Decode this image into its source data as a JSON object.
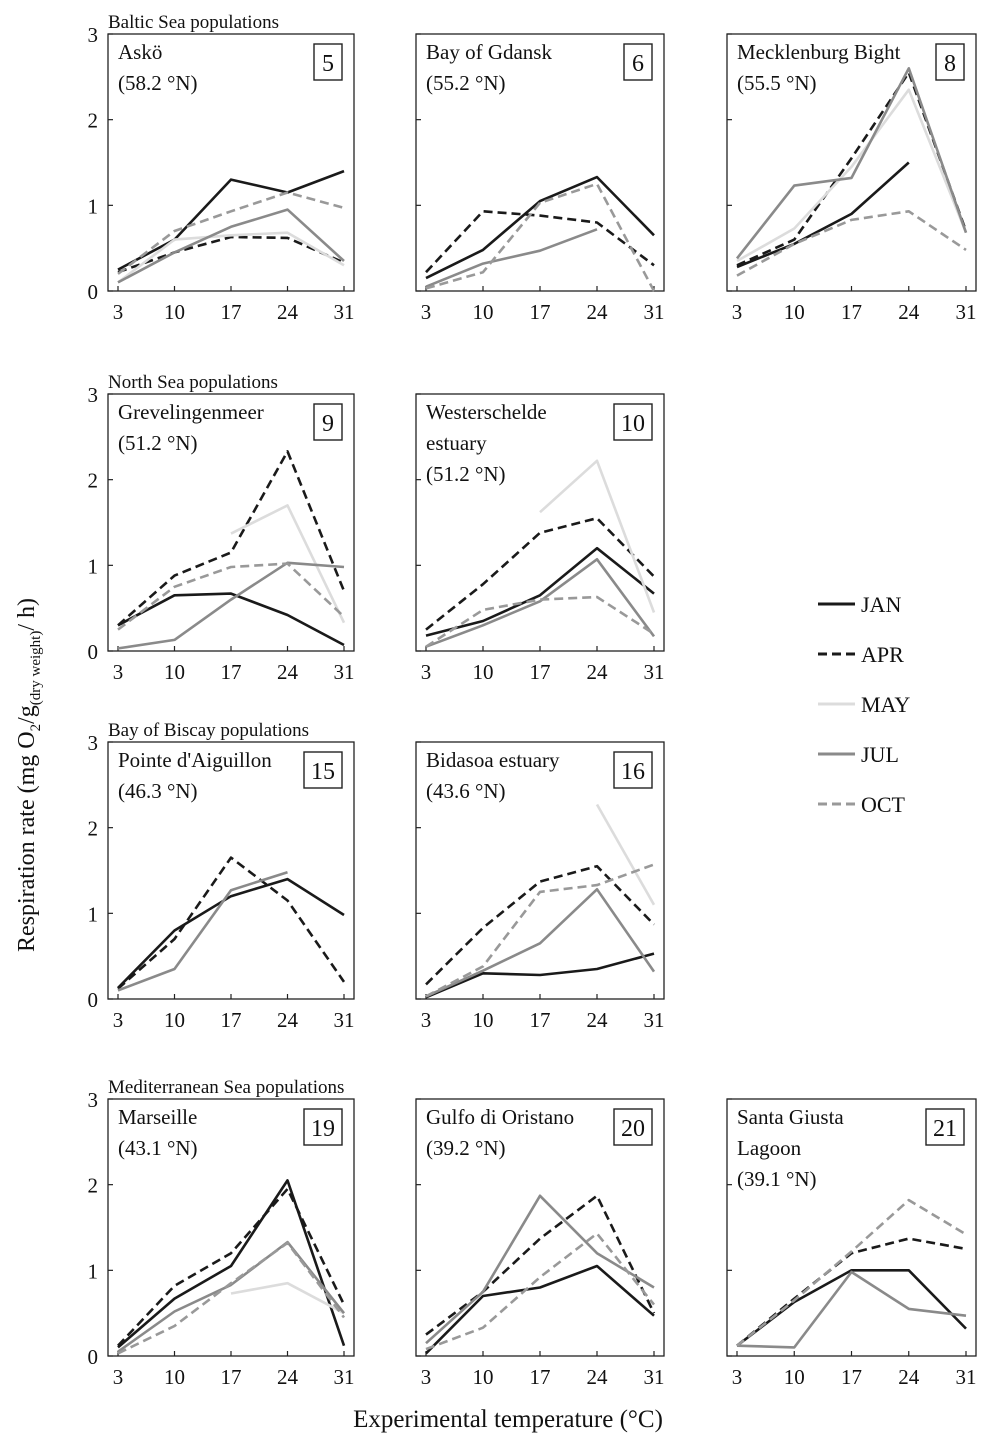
{
  "figure": {
    "y_axis_title": "Respiration rate (mg O",
    "y_axis_sub2": "2",
    "y_axis_mid": "/g",
    "y_axis_sub_dw": "(dry weight)",
    "y_axis_end": "/ h)",
    "x_axis_title": "Experimental temperature (°C)"
  },
  "series_styles": [
    {
      "name": "JAN",
      "color": "#1a1a1a",
      "dash": "solid"
    },
    {
      "name": "APR",
      "color": "#1a1a1a",
      "dash": "dashed"
    },
    {
      "name": "MAY",
      "color": "#dcdcdc",
      "dash": "solid"
    },
    {
      "name": "JUL",
      "color": "#8a8a8a",
      "dash": "solid"
    },
    {
      "name": "OCT",
      "color": "#999999",
      "dash": "dashed"
    }
  ],
  "chart_data": [
    {
      "type": "line",
      "group_label": "Baltic Sea populations",
      "name": "Askö",
      "lat": "(58.2 °N)",
      "number": "5",
      "x": [
        3,
        10,
        17,
        24,
        31
      ],
      "ylim": [
        0,
        3
      ],
      "yticks": [
        0,
        1,
        2,
        3
      ],
      "series": [
        {
          "name": "JAN",
          "values": [
            0.25,
            0.6,
            1.3,
            1.15,
            1.4
          ]
        },
        {
          "name": "APR",
          "values": [
            0.22,
            0.45,
            0.63,
            0.62,
            0.33
          ]
        },
        {
          "name": "MAY",
          "values": [
            0.1,
            0.6,
            0.65,
            0.68,
            0.3
          ]
        },
        {
          "name": "JUL",
          "values": [
            0.1,
            0.45,
            0.75,
            0.95,
            0.35
          ]
        },
        {
          "name": "OCT",
          "values": [
            0.2,
            0.7,
            0.93,
            1.15,
            0.97
          ]
        }
      ]
    },
    {
      "type": "line",
      "group_label": "",
      "name": "Bay of Gdansk",
      "lat": "(55.2 °N)",
      "number": "6",
      "x": [
        3,
        10,
        17,
        24,
        31
      ],
      "ylim": [
        0,
        3
      ],
      "yticks": [
        0,
        1,
        2,
        3
      ],
      "series": [
        {
          "name": "JAN",
          "values": [
            0.15,
            0.48,
            1.05,
            1.33,
            0.65
          ]
        },
        {
          "name": "APR",
          "values": [
            0.22,
            0.93,
            0.88,
            0.8,
            0.3
          ]
        },
        {
          "name": "JUL",
          "values": [
            0.05,
            0.32,
            0.47,
            0.72,
            null
          ]
        },
        {
          "name": "OCT",
          "values": [
            0.03,
            0.22,
            1.03,
            1.25,
            0.0
          ]
        }
      ]
    },
    {
      "type": "line",
      "group_label": "",
      "name": "Mecklenburg Bight",
      "lat": "(55.5 °N)",
      "number": "8",
      "x": [
        3,
        10,
        17,
        24,
        31
      ],
      "ylim": [
        0,
        3
      ],
      "yticks": [
        0,
        1,
        2,
        3
      ],
      "series": [
        {
          "name": "JAN",
          "values": [
            0.28,
            0.55,
            0.9,
            1.5,
            null
          ]
        },
        {
          "name": "APR",
          "values": [
            0.3,
            0.6,
            1.55,
            2.55,
            0.7
          ]
        },
        {
          "name": "MAY",
          "values": [
            0.35,
            0.73,
            1.45,
            2.35,
            0.68
          ]
        },
        {
          "name": "JUL",
          "values": [
            0.38,
            1.23,
            1.32,
            2.6,
            0.68
          ]
        },
        {
          "name": "OCT",
          "values": [
            0.18,
            0.55,
            0.83,
            0.93,
            0.48
          ]
        }
      ]
    },
    {
      "type": "line",
      "group_label": "North Sea populations",
      "name": "Grevelingenmeer",
      "lat": "(51.2 °N)",
      "number": "9",
      "x": [
        3,
        10,
        17,
        24,
        31
      ],
      "ylim": [
        0,
        3
      ],
      "yticks": [
        0,
        1,
        2,
        3
      ],
      "series": [
        {
          "name": "JAN",
          "values": [
            0.3,
            0.65,
            0.67,
            0.42,
            0.07
          ]
        },
        {
          "name": "APR",
          "values": [
            0.3,
            0.88,
            1.15,
            2.33,
            0.7
          ]
        },
        {
          "name": "MAY",
          "values": [
            null,
            null,
            1.37,
            1.7,
            0.33
          ]
        },
        {
          "name": "JUL",
          "values": [
            0.03,
            0.13,
            0.6,
            1.03,
            0.98
          ]
        },
        {
          "name": "OCT",
          "values": [
            0.25,
            0.75,
            0.98,
            1.02,
            0.4
          ]
        }
      ]
    },
    {
      "type": "line",
      "group_label": "",
      "name": "Westerschelde",
      "name2": "estuary",
      "lat": "(51.2 °N)",
      "number": "10",
      "x": [
        3,
        10,
        17,
        24,
        31
      ],
      "ylim": [
        0,
        3
      ],
      "yticks": [
        0,
        1,
        2,
        3
      ],
      "series": [
        {
          "name": "JAN",
          "values": [
            0.18,
            0.35,
            0.65,
            1.2,
            0.67
          ]
        },
        {
          "name": "APR",
          "values": [
            0.25,
            0.78,
            1.38,
            1.55,
            0.87
          ]
        },
        {
          "name": "MAY",
          "values": [
            null,
            null,
            1.62,
            2.22,
            0.45
          ]
        },
        {
          "name": "JUL",
          "values": [
            0.05,
            0.3,
            0.58,
            1.07,
            0.17
          ]
        },
        {
          "name": "OCT",
          "values": [
            0.05,
            0.48,
            0.6,
            0.63,
            0.2
          ]
        }
      ]
    },
    {
      "type": "line",
      "group_label": "Bay of Biscay populations",
      "name": "Pointe d'Aiguillon",
      "lat": "(46.3 °N)",
      "number": "15",
      "x": [
        3,
        10,
        17,
        24,
        31
      ],
      "ylim": [
        0,
        3
      ],
      "yticks": [
        0,
        1,
        2,
        3
      ],
      "series": [
        {
          "name": "JAN",
          "values": [
            0.13,
            0.8,
            1.2,
            1.4,
            0.98
          ]
        },
        {
          "name": "APR",
          "values": [
            0.12,
            0.7,
            1.65,
            1.15,
            0.2
          ]
        },
        {
          "name": "JUL",
          "values": [
            0.1,
            0.35,
            1.27,
            1.48,
            null
          ]
        }
      ]
    },
    {
      "type": "line",
      "group_label": "",
      "name": "Bidasoa estuary",
      "lat": "(43.6 °N)",
      "number": "16",
      "x": [
        3,
        10,
        17,
        24,
        31
      ],
      "ylim": [
        0,
        3
      ],
      "yticks": [
        0,
        1,
        2,
        3
      ],
      "series": [
        {
          "name": "JAN",
          "values": [
            0.02,
            0.3,
            0.28,
            0.35,
            0.53
          ]
        },
        {
          "name": "APR",
          "values": [
            0.17,
            0.83,
            1.37,
            1.55,
            0.87
          ]
        },
        {
          "name": "MAY",
          "values": [
            null,
            null,
            null,
            2.27,
            1.1
          ]
        },
        {
          "name": "JUL",
          "values": [
            0.03,
            0.33,
            0.65,
            1.28,
            0.32
          ]
        },
        {
          "name": "OCT",
          "values": [
            0.03,
            0.38,
            1.25,
            1.33,
            1.57
          ]
        }
      ]
    },
    {
      "type": "line",
      "group_label": "Mediterranean Sea populations",
      "name": "Marseille",
      "lat": "(43.1 °N)",
      "number": "19",
      "x": [
        3,
        10,
        17,
        24,
        31
      ],
      "ylim": [
        0,
        3
      ],
      "yticks": [
        0,
        1,
        2,
        3
      ],
      "series": [
        {
          "name": "JAN",
          "values": [
            0.1,
            0.67,
            1.05,
            2.05,
            0.12
          ]
        },
        {
          "name": "APR",
          "values": [
            0.12,
            0.82,
            1.2,
            1.95,
            0.6
          ]
        },
        {
          "name": "MAY",
          "values": [
            null,
            null,
            0.73,
            0.85,
            0.5
          ]
        },
        {
          "name": "JUL",
          "values": [
            0.05,
            0.52,
            0.83,
            1.33,
            0.5
          ]
        },
        {
          "name": "OCT",
          "values": [
            0.03,
            0.35,
            0.85,
            1.32,
            0.45
          ]
        }
      ]
    },
    {
      "type": "line",
      "group_label": "",
      "name": "Gulfo di Oristano",
      "lat": "(39.2 °N)",
      "number": "20",
      "x": [
        3,
        10,
        17,
        24,
        31
      ],
      "ylim": [
        0,
        3
      ],
      "yticks": [
        0,
        1,
        2,
        3
      ],
      "series": [
        {
          "name": "JAN",
          "values": [
            0.03,
            0.7,
            0.8,
            1.05,
            0.47
          ]
        },
        {
          "name": "APR",
          "values": [
            0.25,
            0.75,
            1.37,
            1.87,
            0.5
          ]
        },
        {
          "name": "JUL",
          "values": [
            0.15,
            0.75,
            1.87,
            1.2,
            0.8
          ]
        },
        {
          "name": "OCT",
          "values": [
            0.08,
            0.33,
            0.92,
            1.43,
            0.6
          ]
        }
      ]
    },
    {
      "type": "line",
      "group_label": "",
      "name": "Santa Giusta",
      "name2": "Lagoon",
      "lat": "(39.1 °N)",
      "number": "21",
      "x": [
        3,
        10,
        17,
        24,
        31
      ],
      "ylim": [
        0,
        3
      ],
      "yticks": [
        0,
        1,
        2,
        3
      ],
      "series": [
        {
          "name": "JAN",
          "values": [
            0.12,
            0.63,
            1.0,
            1.0,
            0.32
          ]
        },
        {
          "name": "APR",
          "values": [
            0.12,
            0.67,
            1.2,
            1.37,
            1.25
          ]
        },
        {
          "name": "JUL",
          "values": [
            0.12,
            0.1,
            0.98,
            0.55,
            0.47
          ]
        },
        {
          "name": "OCT",
          "values": [
            0.12,
            0.65,
            1.22,
            1.82,
            1.42
          ]
        }
      ]
    }
  ]
}
